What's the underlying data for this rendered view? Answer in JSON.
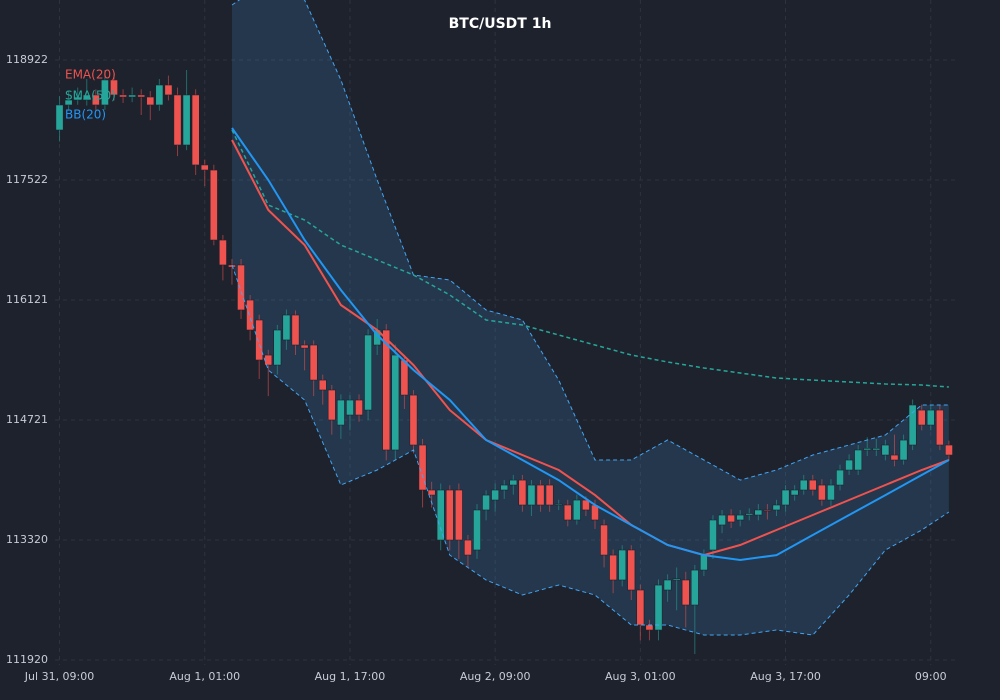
{
  "chart_data": {
    "type": "candlestick",
    "title": "BTC/USDT 1h",
    "up_color": "#26a69a",
    "down_color": "#ef5350",
    "grid": true,
    "legend": "upper left",
    "xlim": [
      -0.5,
      99
    ],
    "ylim": [
      111862,
      119622
    ],
    "yticks": [
      111920,
      113320,
      114721,
      116121,
      117522,
      118922
    ],
    "xticks": [
      {
        "value": 0,
        "label": "Jul 31, 09:00"
      },
      {
        "value": 16,
        "label": "Aug 1, 01:00"
      },
      {
        "value": 32,
        "label": "Aug 1, 17:00"
      },
      {
        "value": 48,
        "label": "Aug 2, 09:00"
      },
      {
        "value": 64,
        "label": "Aug 3, 01:00"
      },
      {
        "value": 80,
        "label": "Aug 3, 17:00"
      },
      {
        "value": 96,
        "label": "09:00"
      }
    ],
    "ohlc": [
      [
        118105,
        118500,
        117970,
        118397
      ],
      [
        118397,
        118560,
        118330,
        118455
      ],
      [
        118455,
        118600,
        118400,
        118490
      ],
      [
        118455,
        118700,
        118390,
        118514
      ],
      [
        118514,
        118580,
        118330,
        118397
      ],
      [
        118397,
        118805,
        118340,
        118689
      ],
      [
        118689,
        118750,
        118450,
        118514
      ],
      [
        118514,
        118580,
        118420,
        118490
      ],
      [
        118490,
        118600,
        118430,
        118514
      ],
      [
        118514,
        118580,
        118280,
        118490
      ],
      [
        118490,
        118560,
        118220,
        118397
      ],
      [
        118397,
        118700,
        118330,
        118630
      ],
      [
        118630,
        118740,
        118450,
        118514
      ],
      [
        118514,
        118600,
        117800,
        117930
      ],
      [
        117930,
        118805,
        117870,
        118514
      ],
      [
        118514,
        118580,
        117580,
        117697
      ],
      [
        117697,
        117760,
        117450,
        117638
      ],
      [
        117638,
        117700,
        116760,
        116821
      ],
      [
        116821,
        116880,
        116350,
        116530
      ],
      [
        116530,
        116600,
        116300,
        116505
      ],
      [
        116530,
        116600,
        115900,
        116005
      ],
      [
        116121,
        116180,
        115650,
        115771
      ],
      [
        115888,
        115950,
        115200,
        115421
      ],
      [
        115479,
        115540,
        115000,
        115362
      ],
      [
        115362,
        115830,
        115250,
        115771
      ],
      [
        115655,
        116010,
        115540,
        115946
      ],
      [
        115946,
        116000,
        115480,
        115596
      ],
      [
        115596,
        115650,
        115300,
        115560
      ],
      [
        115596,
        115650,
        115000,
        115187
      ],
      [
        115187,
        115250,
        114900,
        115071
      ],
      [
        115071,
        115130,
        114550,
        114721
      ],
      [
        114662,
        115020,
        114500,
        114954
      ],
      [
        114779,
        115010,
        114600,
        114954
      ],
      [
        114954,
        115020,
        114700,
        114779
      ],
      [
        114837,
        115780,
        114720,
        115713
      ],
      [
        115596,
        115900,
        115480,
        115771
      ],
      [
        115771,
        115840,
        114250,
        114371
      ],
      [
        114371,
        115600,
        114250,
        115479
      ],
      [
        115421,
        115480,
        114850,
        115012
      ],
      [
        115012,
        115070,
        114330,
        114429
      ],
      [
        114429,
        114500,
        113700,
        113904
      ],
      [
        113904,
        114000,
        113700,
        113845
      ],
      [
        113320,
        113980,
        113200,
        113904
      ],
      [
        113904,
        113960,
        113200,
        113320
      ],
      [
        113904,
        113980,
        113100,
        113320
      ],
      [
        113320,
        113380,
        113000,
        113145
      ],
      [
        113204,
        113740,
        113100,
        113671
      ],
      [
        113671,
        113900,
        113550,
        113845
      ],
      [
        113787,
        113980,
        113650,
        113904
      ],
      [
        113904,
        114020,
        113800,
        113962
      ],
      [
        113962,
        114080,
        113850,
        114020
      ],
      [
        114020,
        114080,
        113650,
        113729
      ],
      [
        113729,
        114020,
        113600,
        113962
      ],
      [
        113962,
        114020,
        113650,
        113729
      ],
      [
        113962,
        114030,
        113650,
        113729
      ],
      [
        113729,
        113790,
        113670,
        113740
      ],
      [
        113729,
        113790,
        113480,
        113554
      ],
      [
        113554,
        113850,
        113500,
        113787
      ],
      [
        113787,
        113830,
        113600,
        113671
      ],
      [
        113729,
        113790,
        113450,
        113554
      ],
      [
        113496,
        113560,
        113000,
        113145
      ],
      [
        113145,
        113210,
        112700,
        112854
      ],
      [
        112854,
        113260,
        112780,
        113204
      ],
      [
        113204,
        113260,
        112620,
        112737
      ],
      [
        112737,
        112800,
        112150,
        112329
      ],
      [
        112329,
        112390,
        112150,
        112270
      ],
      [
        112270,
        112860,
        112150,
        112795
      ],
      [
        112737,
        112920,
        112600,
        112854
      ],
      [
        112854,
        113000,
        112500,
        112870
      ],
      [
        112854,
        112950,
        112300,
        112562
      ],
      [
        112562,
        113030,
        111990,
        112970
      ],
      [
        112970,
        113210,
        112900,
        113145
      ],
      [
        113204,
        113610,
        113100,
        113554
      ],
      [
        113496,
        113670,
        113400,
        113612
      ],
      [
        113612,
        113680,
        113460,
        113531
      ],
      [
        113554,
        113670,
        113480,
        113612
      ],
      [
        113612,
        113690,
        113550,
        113630
      ],
      [
        113612,
        113740,
        113550,
        113671
      ],
      [
        113671,
        113740,
        113560,
        113660
      ],
      [
        113671,
        113790,
        113600,
        113729
      ],
      [
        113729,
        113960,
        113650,
        113904
      ],
      [
        113845,
        113960,
        113780,
        113904
      ],
      [
        113904,
        114080,
        113850,
        114020
      ],
      [
        114020,
        114080,
        113840,
        113904
      ],
      [
        113962,
        114030,
        113720,
        113787
      ],
      [
        113787,
        114030,
        113720,
        113962
      ],
      [
        113962,
        114200,
        113900,
        114137
      ],
      [
        114137,
        114320,
        114080,
        114254
      ],
      [
        114137,
        114430,
        114080,
        114371
      ],
      [
        114371,
        114520,
        114300,
        114390
      ],
      [
        114371,
        114500,
        114300,
        114390
      ],
      [
        114312,
        114490,
        114250,
        114429
      ],
      [
        114312,
        114550,
        114180,
        114254
      ],
      [
        114254,
        114550,
        114200,
        114487
      ],
      [
        114429,
        114960,
        114370,
        114896
      ],
      [
        114837,
        114900,
        114600,
        114662
      ],
      [
        114662,
        114900,
        114600,
        114837
      ],
      [
        114837,
        114900,
        114370,
        114429
      ],
      [
        114429,
        114480,
        114250,
        114312
      ]
    ],
    "overlays": {
      "x": [
        19,
        23,
        27,
        31,
        35,
        39,
        43,
        47,
        51,
        55,
        59,
        63,
        67,
        71,
        75,
        79,
        83,
        87,
        91,
        95,
        98
      ],
      "series": [
        {
          "name": "EMA(20)",
          "color": "#ef5350",
          "values": [
            117988,
            117171,
            116763,
            116063,
            115771,
            115362,
            114837,
            114487,
            114312,
            114137,
            113845,
            113496,
            113262,
            113145,
            113262,
            113437,
            113612,
            113787,
            113962,
            114137,
            114254
          ]
        },
        {
          "name": "SMA(50)",
          "color": "#26a69a",
          "dashed": true,
          "values": [
            118105,
            117230,
            117055,
            116763,
            116588,
            116413,
            116180,
            115888,
            115829,
            115713,
            115596,
            115479,
            115398,
            115328,
            115269,
            115211,
            115187,
            115164,
            115141,
            115129,
            115106
          ]
        },
        {
          "name": "BB(20)",
          "color": "#2196f3",
          "band_color": "#42a5f5",
          "values": [
            118128,
            117522,
            116821,
            116238,
            115713,
            115304,
            114954,
            114487,
            114254,
            114020,
            113729,
            113496,
            113262,
            113145,
            113087,
            113145,
            113379,
            113612,
            113845,
            114079,
            114254
          ],
          "upper": [
            119564,
            119856,
            119622,
            118689,
            117522,
            116413,
            116355,
            116005,
            115888,
            115187,
            114254,
            114254,
            114487,
            114254,
            114020,
            114137,
            114312,
            114429,
            114546,
            114896,
            114896
          ],
          "lower": [
            116530,
            115304,
            114954,
            113962,
            114137,
            114371,
            113145,
            112854,
            112679,
            112795,
            112679,
            112329,
            112329,
            112212,
            112212,
            112270,
            112212,
            112679,
            113204,
            113437,
            113647
          ]
        }
      ]
    }
  }
}
